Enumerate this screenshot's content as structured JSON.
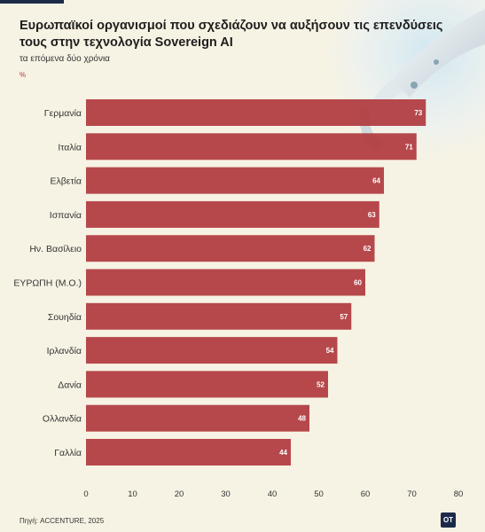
{
  "header": {
    "title": "Ευρωπαϊκοί οργανισμοί που σχεδιάζουν να αυξήσουν τις επενδύσεις τους στην τεχνολογία Sovereign AI",
    "subtitle": "τα επόμενα δύο χρόνια",
    "unit": "%"
  },
  "footer": {
    "source": "Πηγή: ACCENTURE, 2025",
    "logo": "OT"
  },
  "colors": {
    "bar": "#b03a3e",
    "background": "#f7f3e4",
    "accent": "#1c2a4a"
  },
  "chart_data": {
    "type": "bar",
    "orientation": "horizontal",
    "categories": [
      "Γερμανία",
      "Ιταλία",
      "Ελβετία",
      "Ισπανία",
      "Ην. Βασίλειο",
      "ΕΥΡΩΠΗ (Μ.Ο.)",
      "Σουηδία",
      "Ιρλανδία",
      "Δανία",
      "Ολλανδία",
      "Γαλλία"
    ],
    "values": [
      73,
      71,
      64,
      63,
      62,
      60,
      57,
      54,
      52,
      48,
      44
    ],
    "xlim": [
      0,
      80
    ],
    "xticks": [
      0,
      10,
      20,
      30,
      40,
      50,
      60,
      70,
      80
    ],
    "grid": false,
    "data_labels": true
  }
}
